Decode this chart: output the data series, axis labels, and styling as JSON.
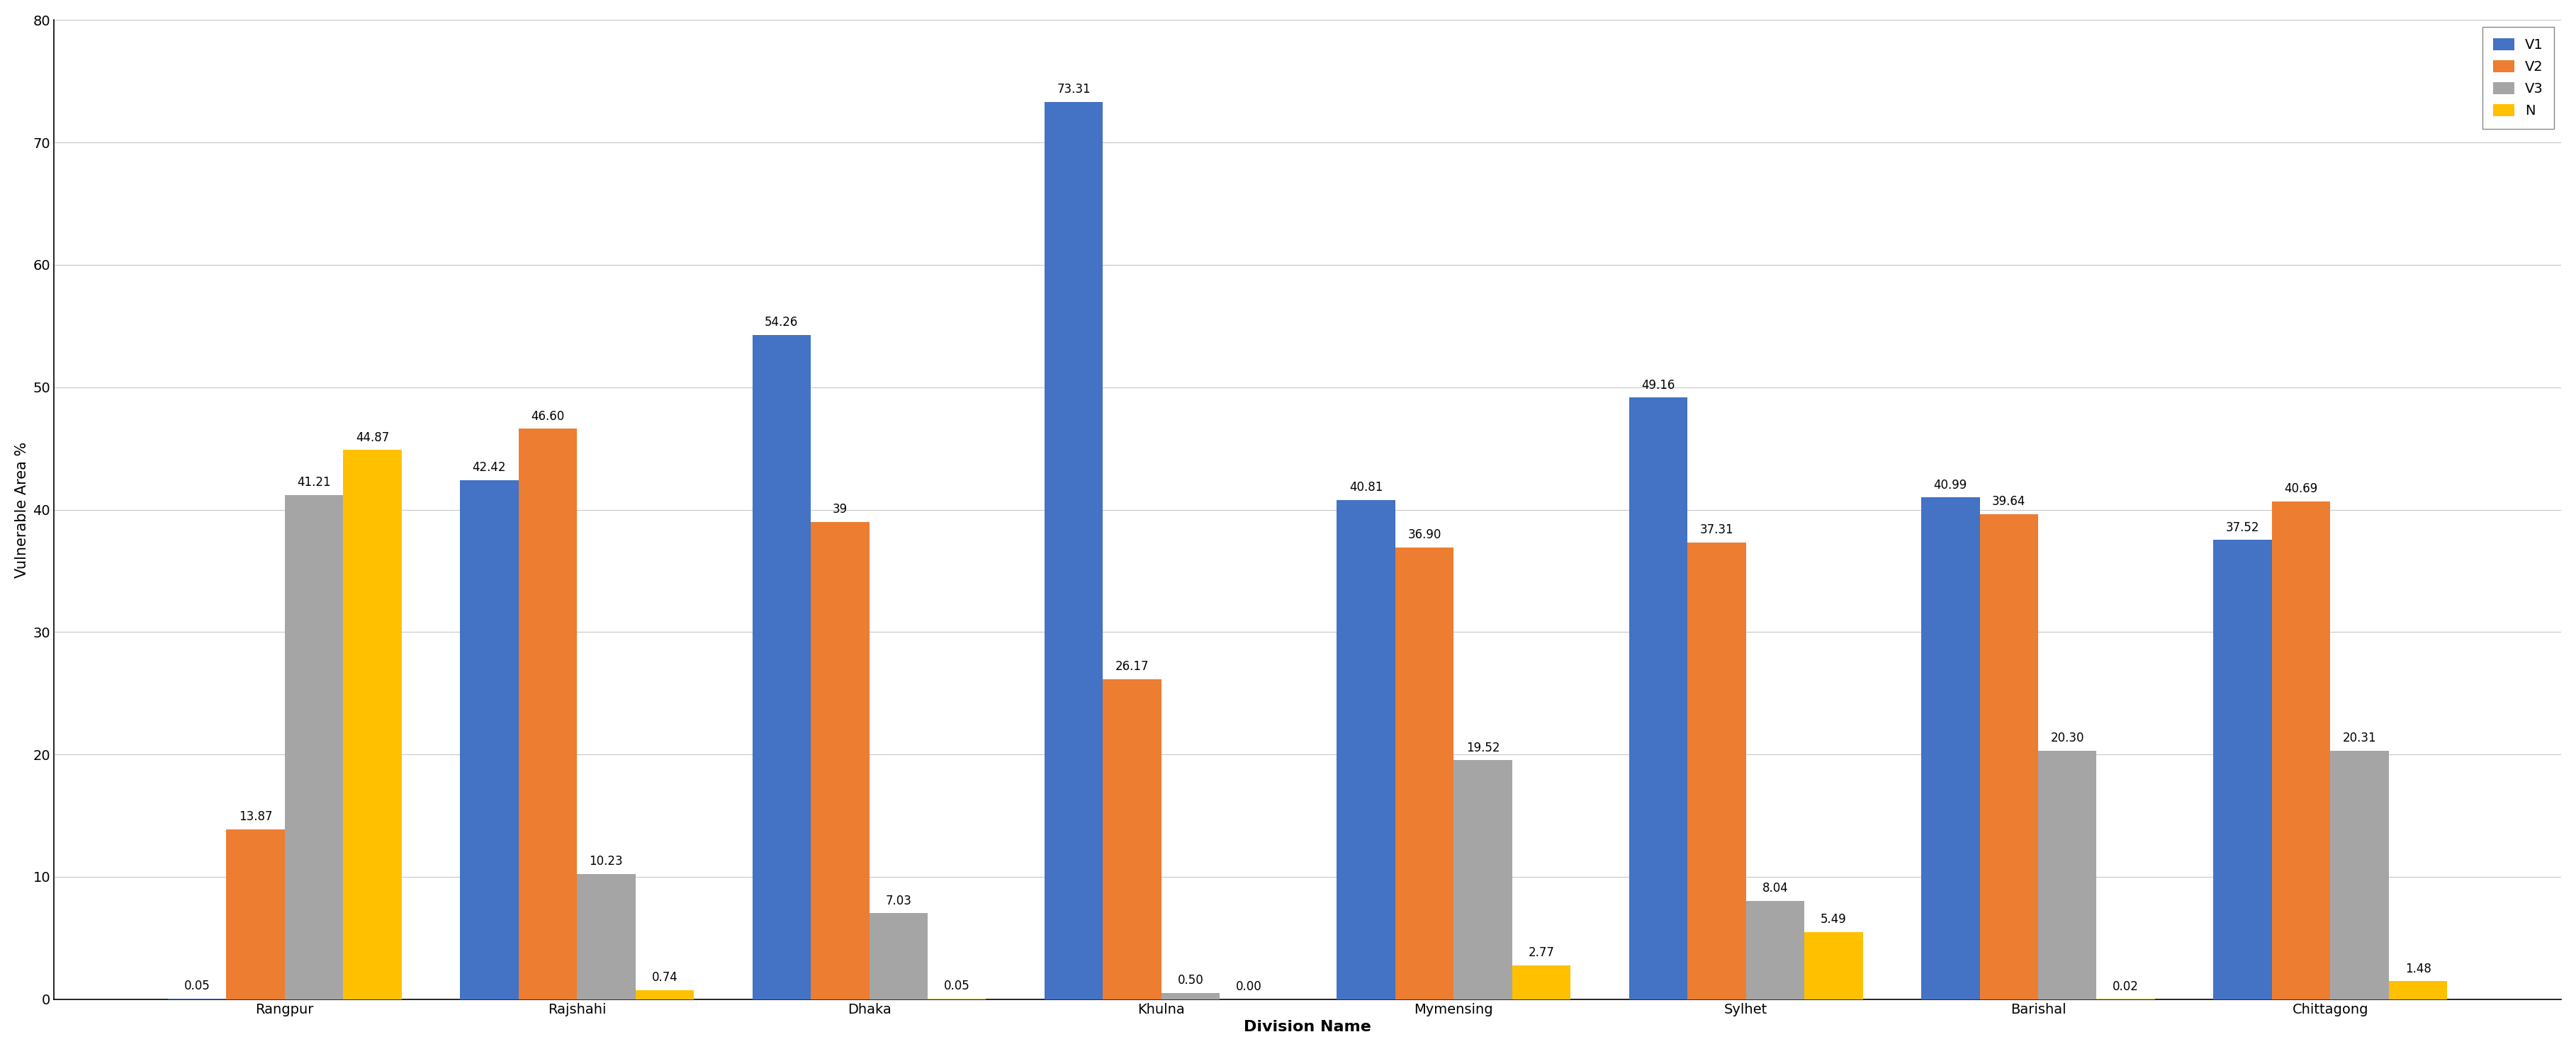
{
  "categories": [
    "Rangpur",
    "Rajshahi",
    "Dhaka",
    "Khulna",
    "Mymensing",
    "Sylhet",
    "Barishal",
    "Chittagong"
  ],
  "v1_values": [
    0.05,
    42.42,
    54.26,
    73.31,
    40.81,
    49.16,
    40.99,
    37.52
  ],
  "v2_values": [
    13.87,
    46.6,
    39.0,
    26.17,
    36.9,
    37.31,
    39.64,
    40.69
  ],
  "v3_values": [
    41.21,
    10.23,
    7.03,
    0.5,
    19.52,
    8.04,
    20.3,
    20.31
  ],
  "n_values": [
    44.87,
    0.74,
    0.05,
    0.0,
    2.77,
    5.49,
    0.02,
    1.48
  ],
  "v1_labels": [
    "0.05",
    "42.42",
    "54.26",
    "73.31",
    "40.81",
    "49.16",
    "40.99",
    "37.52"
  ],
  "v2_labels": [
    "13.87",
    "46.60",
    "39",
    "26.17",
    "36.90",
    "37.31",
    "39.64",
    "40.69"
  ],
  "v3_labels": [
    "41.21",
    "10.23",
    "7.03",
    "0.50",
    "19.52",
    "8.04",
    "20.30",
    "20.31"
  ],
  "n_labels": [
    "44.87",
    "0.74",
    "0.05",
    "0.00",
    "2.77",
    "5.49",
    "0.02",
    "1.48"
  ],
  "colors": {
    "V1": "#4472C4",
    "V2": "#ED7D31",
    "V3": "#A5A5A5",
    "N": "#FFC000"
  },
  "xlabel": "Division Name",
  "ylabel": "Vulnerable Area %",
  "ylim": [
    0,
    80
  ],
  "yticks": [
    0,
    10,
    20,
    30,
    40,
    50,
    60,
    70,
    80
  ],
  "bar_width": 0.2,
  "legend_labels": [
    "V1",
    "V2",
    "V3",
    "N"
  ],
  "tick_fontsize": 14,
  "annotation_fontsize": 12,
  "xlabel_fontsize": 16,
  "ylabel_fontsize": 15,
  "legend_fontsize": 14,
  "background_color": "#ffffff",
  "grid_color": "#c8c8c8"
}
